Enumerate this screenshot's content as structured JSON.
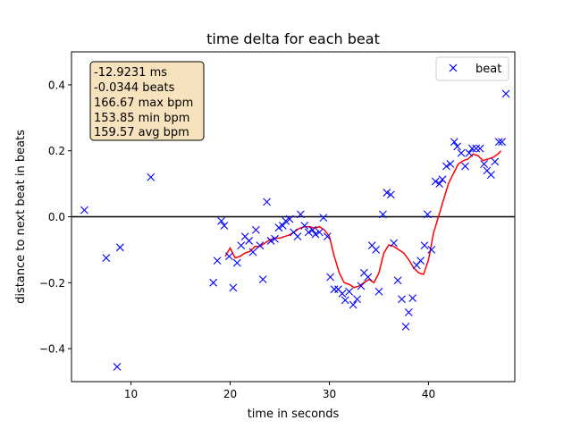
{
  "chart_data": {
    "type": "scatter",
    "title": "time delta for each beat",
    "xlabel": "time in seconds",
    "ylabel": "distance to next beat in beats",
    "xlim": [
      4.0,
      48.7
    ],
    "ylim": [
      -0.5,
      0.5
    ],
    "x_ticks": [
      10,
      20,
      30,
      40
    ],
    "y_ticks": [
      -0.4,
      -0.2,
      0.0,
      0.2,
      0.4
    ],
    "grid": false,
    "legend": {
      "position": "top-right",
      "entries": [
        "beat"
      ]
    },
    "stats_box": {
      "lines": [
        "-12.9231 ms",
        "-0.0344 beats",
        "166.67 max bpm",
        "153.85 min bpm",
        "159.57 avg bpm"
      ],
      "background": "#f5deb3"
    },
    "reference_line": {
      "y": 0.0,
      "color": "#000000"
    },
    "series": [
      {
        "name": "beat",
        "marker": "x",
        "color": "#0000ff",
        "points": [
          [
            5.3,
            0.02
          ],
          [
            7.5,
            -0.125
          ],
          [
            8.6,
            -0.455
          ],
          [
            8.9,
            -0.093
          ],
          [
            12.0,
            0.12
          ],
          [
            18.3,
            -0.2
          ],
          [
            18.7,
            -0.133
          ],
          [
            19.1,
            -0.013
          ],
          [
            19.4,
            -0.027
          ],
          [
            19.9,
            -0.12
          ],
          [
            20.3,
            -0.215
          ],
          [
            20.7,
            -0.14
          ],
          [
            21.1,
            -0.087
          ],
          [
            21.5,
            -0.06
          ],
          [
            21.9,
            -0.073
          ],
          [
            22.3,
            -0.107
          ],
          [
            22.6,
            -0.04
          ],
          [
            23.0,
            -0.087
          ],
          [
            23.3,
            -0.19
          ],
          [
            23.7,
            0.045
          ],
          [
            24.1,
            -0.073
          ],
          [
            24.5,
            -0.067
          ],
          [
            24.9,
            -0.033
          ],
          [
            25.3,
            -0.027
          ],
          [
            25.6,
            -0.013
          ],
          [
            26.0,
            -0.007
          ],
          [
            26.4,
            -0.047
          ],
          [
            26.8,
            -0.06
          ],
          [
            27.1,
            0.007
          ],
          [
            27.5,
            -0.027
          ],
          [
            27.9,
            -0.047
          ],
          [
            28.3,
            -0.04
          ],
          [
            28.6,
            -0.053
          ],
          [
            29.0,
            -0.047
          ],
          [
            29.4,
            -0.003
          ],
          [
            29.8,
            -0.06
          ],
          [
            30.1,
            -0.183
          ],
          [
            30.5,
            -0.22
          ],
          [
            30.9,
            -0.22
          ],
          [
            31.3,
            -0.233
          ],
          [
            31.6,
            -0.253
          ],
          [
            32.0,
            -0.227
          ],
          [
            32.4,
            -0.267
          ],
          [
            32.8,
            -0.25
          ],
          [
            33.2,
            -0.21
          ],
          [
            33.5,
            -0.17
          ],
          [
            33.9,
            -0.183
          ],
          [
            34.3,
            -0.087
          ],
          [
            34.7,
            -0.1
          ],
          [
            35.0,
            -0.227
          ],
          [
            35.4,
            0.007
          ],
          [
            35.8,
            0.073
          ],
          [
            36.2,
            0.067
          ],
          [
            36.5,
            -0.08
          ],
          [
            36.9,
            -0.193
          ],
          [
            37.3,
            -0.25
          ],
          [
            37.7,
            -0.333
          ],
          [
            38.0,
            -0.29
          ],
          [
            38.4,
            -0.247
          ],
          [
            38.8,
            -0.147
          ],
          [
            39.2,
            -0.133
          ],
          [
            39.6,
            -0.087
          ],
          [
            39.9,
            0.007
          ],
          [
            40.3,
            -0.1
          ],
          [
            40.7,
            0.107
          ],
          [
            41.1,
            0.1
          ],
          [
            41.4,
            0.113
          ],
          [
            41.8,
            0.153
          ],
          [
            42.2,
            0.16
          ],
          [
            42.6,
            0.227
          ],
          [
            42.9,
            0.213
          ],
          [
            43.3,
            0.193
          ],
          [
            43.7,
            0.153
          ],
          [
            44.1,
            0.193
          ],
          [
            44.4,
            0.207
          ],
          [
            44.8,
            0.207
          ],
          [
            45.2,
            0.207
          ],
          [
            45.6,
            0.16
          ],
          [
            45.9,
            0.14
          ],
          [
            46.3,
            0.127
          ],
          [
            46.7,
            0.167
          ],
          [
            47.1,
            0.227
          ],
          [
            47.4,
            0.227
          ],
          [
            47.8,
            0.373
          ]
        ]
      },
      {
        "marker": "none",
        "color": "#ff0000",
        "points": [
          [
            19.5,
            -0.12
          ],
          [
            20.0,
            -0.095
          ],
          [
            20.5,
            -0.125
          ],
          [
            21.0,
            -0.12
          ],
          [
            21.5,
            -0.11
          ],
          [
            22.0,
            -0.105
          ],
          [
            22.5,
            -0.09
          ],
          [
            23.0,
            -0.09
          ],
          [
            23.5,
            -0.08
          ],
          [
            24.0,
            -0.07
          ],
          [
            24.5,
            -0.065
          ],
          [
            25.0,
            -0.065
          ],
          [
            25.5,
            -0.06
          ],
          [
            26.0,
            -0.055
          ],
          [
            26.5,
            -0.045
          ],
          [
            27.0,
            -0.035
          ],
          [
            27.5,
            -0.03
          ],
          [
            28.0,
            -0.03
          ],
          [
            28.5,
            -0.035
          ],
          [
            29.0,
            -0.03
          ],
          [
            29.5,
            -0.04
          ],
          [
            30.0,
            -0.06
          ],
          [
            30.5,
            -0.12
          ],
          [
            31.0,
            -0.17
          ],
          [
            31.5,
            -0.2
          ],
          [
            32.0,
            -0.205
          ],
          [
            32.5,
            -0.215
          ],
          [
            33.0,
            -0.21
          ],
          [
            33.5,
            -0.2
          ],
          [
            34.0,
            -0.19
          ],
          [
            34.5,
            -0.2
          ],
          [
            35.0,
            -0.17
          ],
          [
            35.5,
            -0.11
          ],
          [
            36.0,
            -0.085
          ],
          [
            36.5,
            -0.09
          ],
          [
            37.0,
            -0.1
          ],
          [
            37.5,
            -0.11
          ],
          [
            38.0,
            -0.13
          ],
          [
            38.5,
            -0.155
          ],
          [
            39.0,
            -0.17
          ],
          [
            39.5,
            -0.175
          ],
          [
            40.0,
            -0.13
          ],
          [
            40.5,
            -0.05
          ],
          [
            41.0,
            0.0
          ],
          [
            41.5,
            0.05
          ],
          [
            42.0,
            0.1
          ],
          [
            42.5,
            0.13
          ],
          [
            43.0,
            0.16
          ],
          [
            43.5,
            0.17
          ],
          [
            44.0,
            0.175
          ],
          [
            44.5,
            0.19
          ],
          [
            45.0,
            0.185
          ],
          [
            45.5,
            0.17
          ],
          [
            46.0,
            0.175
          ],
          [
            46.5,
            0.18
          ],
          [
            47.0,
            0.19
          ],
          [
            47.3,
            0.2
          ]
        ]
      }
    ]
  }
}
